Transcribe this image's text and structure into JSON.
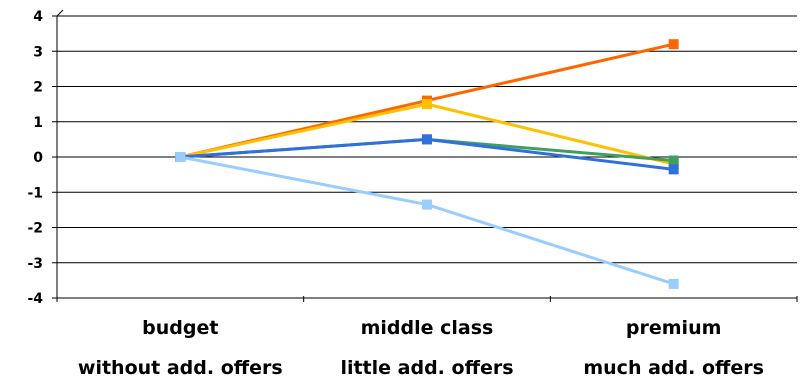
{
  "chart_data": {
    "type": "line",
    "categories": [
      "budget",
      "middle class",
      "premium"
    ],
    "category_sublabels": [
      "without add. offers",
      "little add. offers",
      "much add. offers"
    ],
    "ylim": [
      -4,
      4
    ],
    "y_ticks": [
      "4",
      "3",
      "2",
      "1",
      "0",
      "-1",
      "-2",
      "-3",
      "-4"
    ],
    "grid": true,
    "legend": "none",
    "series": [
      {
        "color": "#FF6600",
        "values": [
          0,
          1.6,
          3.2
        ]
      },
      {
        "color": "#FFC000",
        "values": [
          0,
          1.5,
          -0.2
        ]
      },
      {
        "color": "#3F9F5F",
        "values": [
          0,
          0.5,
          -0.1
        ]
      },
      {
        "color": "#2F6FE0",
        "values": [
          0,
          0.5,
          -0.35
        ]
      },
      {
        "color": "#99CCFF",
        "values": [
          0,
          -1.35,
          -3.6
        ]
      }
    ]
  }
}
